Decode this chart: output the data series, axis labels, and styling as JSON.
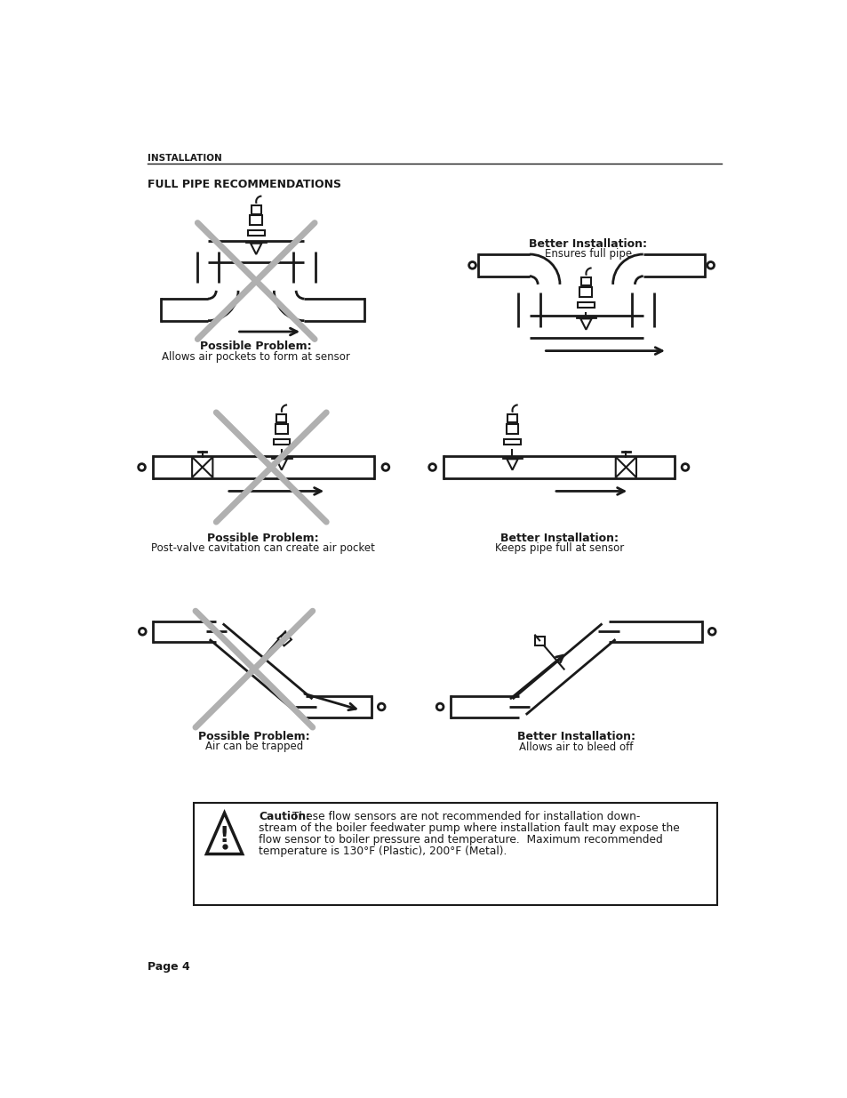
{
  "page_header": "INSTALLATION",
  "section_title": "FULL PIPE RECOMMENDATIONS",
  "bg_color": "#ffffff",
  "text_color": "#1a1a1a",
  "gray_color": "#b0b0b0",
  "line_color": "#1a1a1a",
  "caution_bold": "Caution:",
  "caution_rest": " These flow sensors are not recommended for installation down-\nstream of the boiler feedwater pump where installation fault may expose the\nflow sensor to boiler pressure and temperature.  Maximum recommended\ntemperature is 130°F (Plastic), 200°F (Metal).",
  "page_footer": "Page 4",
  "prob1_bold": "Possible Problem:",
  "prob1_desc": "Allows air pockets to form at sensor",
  "better1_bold": "Better Installation:",
  "better1_desc": "Ensures full pipe",
  "prob2_bold": "Possible Problem:",
  "prob2_desc": "Post-valve cavitation can create air pocket",
  "better2_bold": "Better Installation:",
  "better2_desc": "Keeps pipe full at sensor",
  "prob3_bold": "Possible Problem:",
  "prob3_desc": "Air can be trapped",
  "better3_bold": "Better Installation:",
  "better3_desc": "Allows air to bleed off"
}
